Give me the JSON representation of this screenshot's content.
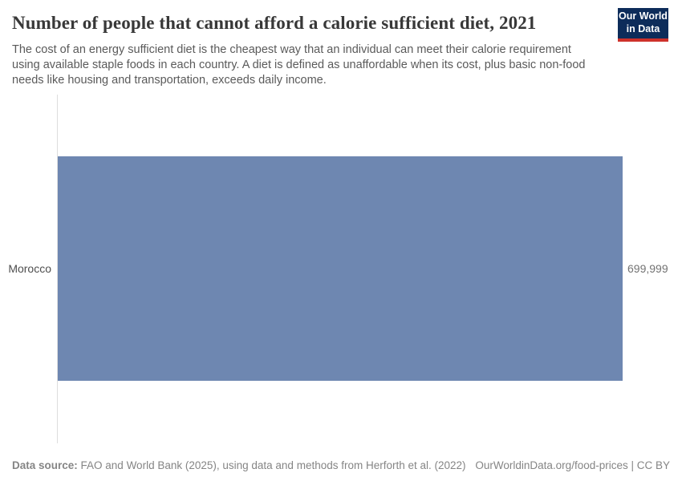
{
  "header": {
    "title": "Number of people that cannot afford a calorie sufficient diet, 2021",
    "subtitle": "The cost of an energy sufficient diet is the cheapest way that an individual can meet their calorie requirement using available staple foods in each country. A diet is defined as unaffordable when its cost, plus basic non-food needs like housing and transportation, exceeds daily income.",
    "logo": {
      "line1": "Our World",
      "line2": "in Data",
      "bg_color": "#0d2c5a",
      "accent_color": "#ce312b"
    }
  },
  "chart_data": {
    "type": "bar",
    "orientation": "horizontal",
    "title": "Number of people that cannot afford a calorie sufficient diet, 2021",
    "categories": [
      "Morocco"
    ],
    "values": [
      699999
    ],
    "value_labels": [
      "699,999"
    ],
    "xlabel": "",
    "ylabel": "",
    "xlim": [
      0,
      700000
    ],
    "grid": false,
    "legend": "none",
    "bar_color": "#6e87b1",
    "axis_line_color": "#dedede"
  },
  "footer": {
    "datasource_label": "Data source:",
    "datasource_text": " FAO and World Bank (2025), using data and methods from Herforth et al. (2022)",
    "rights": "OurWorldinData.org/food-prices | CC BY"
  }
}
